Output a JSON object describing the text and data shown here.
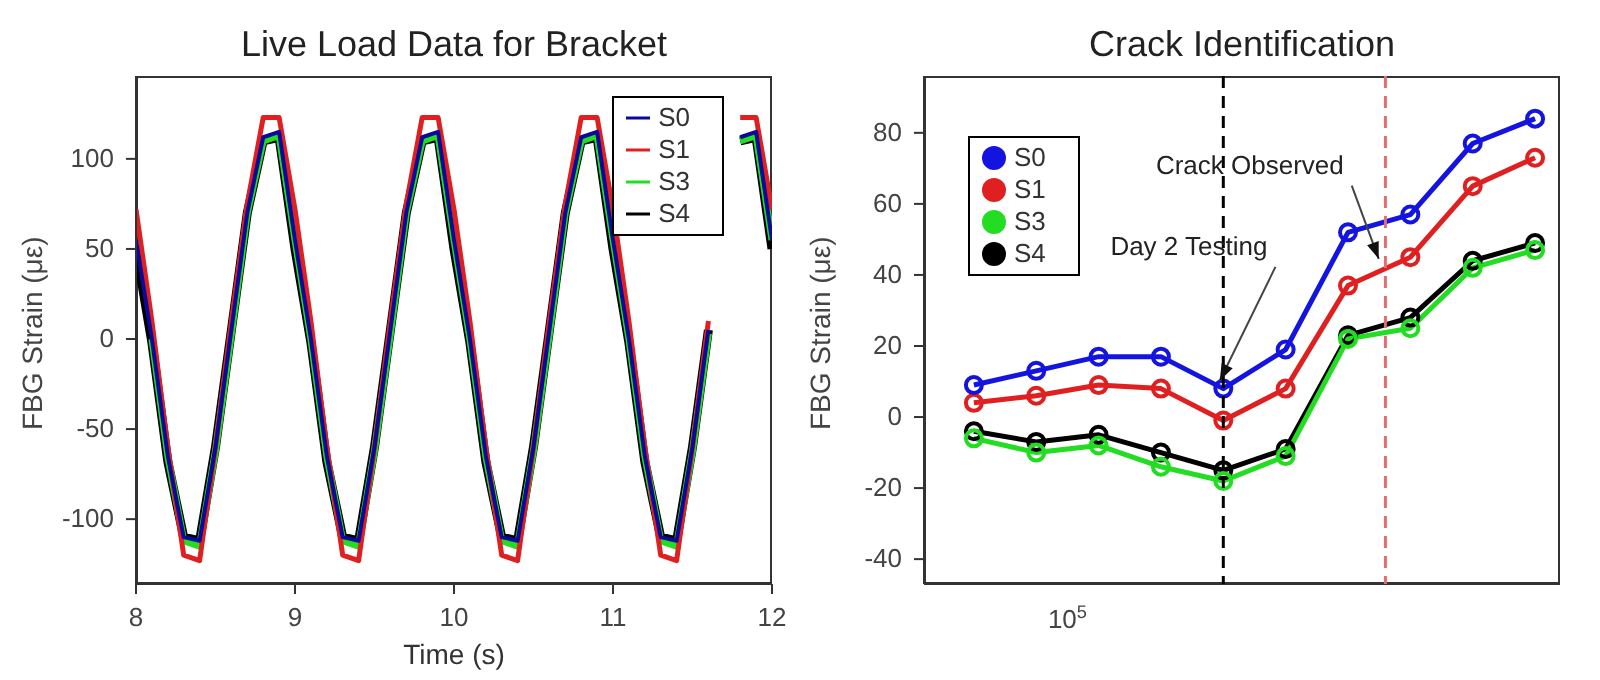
{
  "chart_data": [
    {
      "type": "line",
      "title": "Live Load Data for Bracket",
      "xlabel": "Time (s)",
      "ylabel": "FBG Strain (με)",
      "xlim": [
        8,
        12
      ],
      "xticks": [
        8,
        9,
        10,
        11,
        12
      ],
      "ylim": [
        -136,
        146
      ],
      "yticks": [
        -100,
        -50,
        0,
        50,
        100
      ],
      "grid": false,
      "legend": "top right",
      "marker": "none",
      "line_style": "solid",
      "x": [
        8,
        8.1,
        8.2,
        8.3,
        8.4,
        8.5,
        8.6,
        8.7,
        8.8,
        8.9,
        9,
        9.1,
        9.2,
        9.3,
        9.4,
        9.5,
        9.6,
        9.7,
        9.8,
        9.9,
        10,
        10.1,
        10.2,
        10.3,
        10.4,
        10.5,
        10.6,
        10.7,
        10.8,
        10.9,
        11,
        11.1,
        11.2,
        11.3,
        11.4,
        11.5,
        11.6,
        11.7,
        11.8,
        11.9,
        12
      ],
      "series": [
        {
          "name": "S0",
          "color": "#0a0a9a",
          "values": [
            55,
            0,
            -65,
            -110,
            -112,
            -60,
            5,
            70,
            112,
            115,
            55,
            0,
            -65,
            -110,
            -112,
            -60,
            5,
            70,
            112,
            115,
            55,
            0,
            -65,
            -110,
            -112,
            -60,
            5,
            70,
            112,
            115,
            55,
            0,
            -65,
            -110,
            -112,
            -60,
            5,
            null,
            112,
            115,
            55
          ]
        },
        {
          "name": "S1",
          "color": "#e02020",
          "values": [
            72,
            10,
            -60,
            -120,
            -123,
            -60,
            10,
            75,
            123,
            123,
            72,
            10,
            -60,
            -120,
            -123,
            -60,
            10,
            75,
            123,
            123,
            72,
            10,
            -60,
            -120,
            -123,
            -60,
            10,
            75,
            123,
            123,
            72,
            10,
            -60,
            -120,
            -123,
            -60,
            10,
            null,
            123,
            123,
            72
          ]
        },
        {
          "name": "S3",
          "color": "#22dd22",
          "values": [
            null,
            0,
            -65,
            -112,
            -115,
            -62,
            3,
            70,
            110,
            113,
            55,
            0,
            -65,
            -112,
            -115,
            -62,
            3,
            70,
            110,
            113,
            55,
            0,
            -65,
            -112,
            -115,
            -62,
            3,
            70,
            110,
            113,
            55,
            0,
            -65,
            -112,
            -115,
            -62,
            3,
            null,
            110,
            113,
            55
          ]
        },
        {
          "name": "S4",
          "color": "#000000",
          "values": [
            50,
            -2,
            -68,
            -110,
            -112,
            -60,
            5,
            70,
            110,
            112,
            50,
            -2,
            -68,
            -110,
            -112,
            -60,
            5,
            70,
            110,
            112,
            50,
            -2,
            -68,
            -110,
            -112,
            -60,
            5,
            70,
            110,
            112,
            50,
            -2,
            -68,
            -110,
            -112,
            -60,
            5,
            null,
            110,
            112,
            50
          ]
        }
      ]
    },
    {
      "type": "line",
      "title": "Crack Identification",
      "ylabel": "FBG Strain (με)",
      "ylim": [
        -47,
        96
      ],
      "yticks": [
        -40,
        -20,
        0,
        20,
        40,
        60,
        80
      ],
      "grid": false,
      "legend": "top left",
      "marker": "circle",
      "line_style": "solid",
      "categories": [
        null,
        null,
        null,
        null,
        null,
        null,
        null,
        null,
        null,
        null
      ],
      "series": [
        {
          "name": "S0",
          "color": "#1414e0",
          "values": [
            9,
            13,
            17,
            17,
            8,
            19,
            52,
            57,
            77,
            84
          ]
        },
        {
          "name": "S1",
          "color": "#e02020",
          "values": [
            4,
            6,
            9,
            8,
            -1,
            8,
            37,
            45,
            65,
            73
          ]
        },
        {
          "name": "S3",
          "color": "#22dd22",
          "values": [
            -6,
            -10,
            -8,
            -14,
            -18,
            -11,
            22,
            25,
            42,
            47
          ]
        },
        {
          "name": "S4",
          "color": "#000000",
          "values": [
            -4,
            -7,
            -5,
            -10,
            -15,
            -9,
            23,
            28,
            44,
            49
          ]
        }
      ],
      "annotations": [
        "Crack Observed",
        "Day 2 Testing",
        "10$^{5}$"
      ]
    }
  ]
}
